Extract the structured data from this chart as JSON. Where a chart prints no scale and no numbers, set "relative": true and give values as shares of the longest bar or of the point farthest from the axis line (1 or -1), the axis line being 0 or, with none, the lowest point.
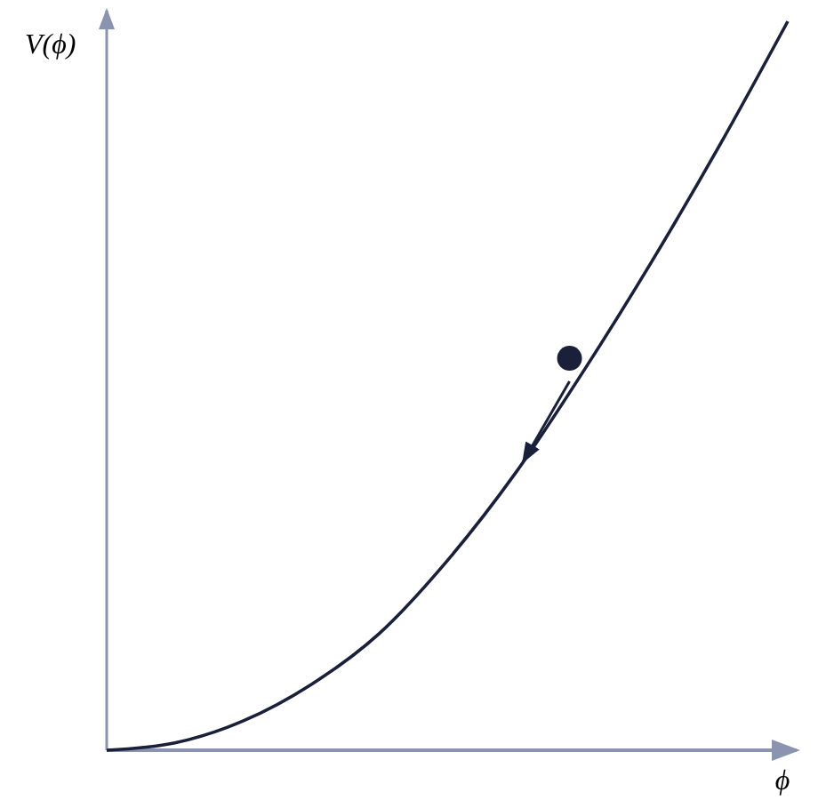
{
  "chart_data": {
    "type": "line",
    "relative": true,
    "xlabel": "ϕ",
    "ylabel": "V(ϕ)",
    "categories": [
      null,
      null,
      null,
      null,
      null,
      null,
      null,
      null,
      null,
      null,
      null
    ],
    "series": [
      {
        "color": "#1a1f3a",
        "values": [
          0,
          0.01,
          0.04,
          0.09,
          0.16,
          0.26,
          0.38,
          0.52,
          0.67,
          0.83,
          1.0
        ]
      }
    ],
    "marker": "none",
    "line_style": "solid"
  }
}
